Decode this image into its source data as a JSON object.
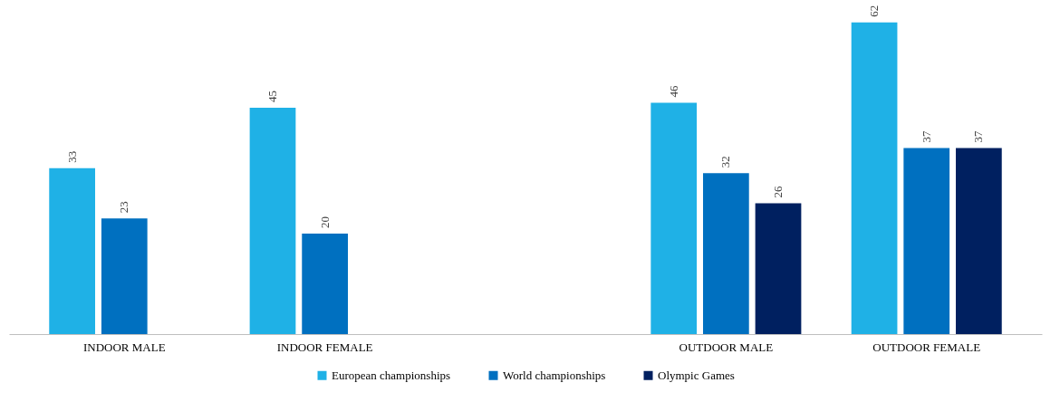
{
  "chart_data": {
    "type": "bar",
    "categories": [
      "INDOOR MALE",
      "INDOOR FEMALE",
      null,
      "OUTDOOR MALE",
      "OUTDOOR FEMALE"
    ],
    "series": [
      {
        "name": "European championships",
        "color": "#1fb1e6",
        "values": [
          33,
          45,
          null,
          46,
          62
        ]
      },
      {
        "name": "World championships",
        "color": "#0070c0",
        "values": [
          23,
          20,
          null,
          32,
          37
        ]
      },
      {
        "name": "Olympic Games",
        "color": "#002060",
        "values": [
          null,
          null,
          null,
          26,
          37
        ]
      }
    ],
    "data_labels": true,
    "legend": "bottom",
    "grid": false
  }
}
